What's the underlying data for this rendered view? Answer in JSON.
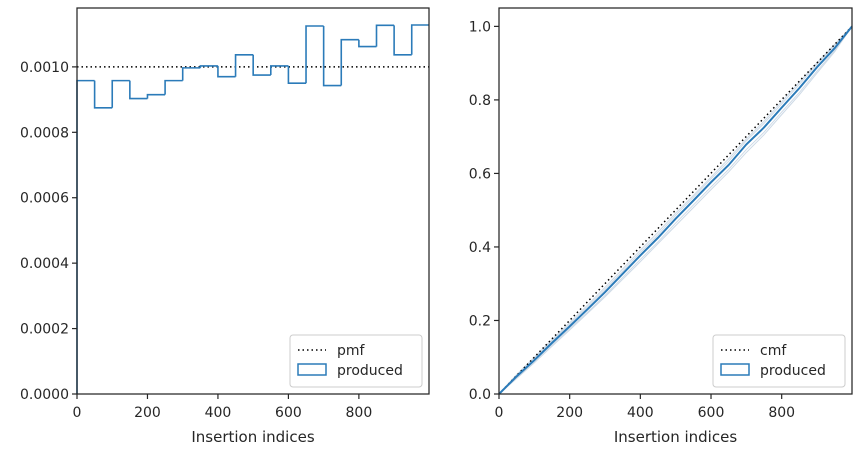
{
  "chart_data": [
    {
      "type": "step",
      "xlabel": "Insertion indices",
      "ylabel": "",
      "xlim": [
        0,
        999
      ],
      "ylim": [
        0,
        0.00118
      ],
      "xticks": [
        0,
        200,
        400,
        600,
        800
      ],
      "yticks": [
        0.0,
        0.0002,
        0.0004,
        0.0006,
        0.0008,
        0.001
      ],
      "ytick_labels": [
        "0.0000",
        "0.0002",
        "0.0004",
        "0.0006",
        "0.0008",
        "0.0010"
      ],
      "reference_line": {
        "name": "pmf",
        "style": "dotted",
        "color": "#000000",
        "value": 0.001
      },
      "histogram": {
        "name": "produced",
        "color": "#2b7bb9",
        "bin_edges": [
          0,
          50,
          100,
          150,
          200,
          250,
          300,
          350,
          400,
          450,
          500,
          550,
          600,
          650,
          700,
          750,
          800,
          850,
          900,
          950,
          999
        ],
        "values": [
          0.000958,
          0.000875,
          0.000958,
          0.000903,
          0.000915,
          0.000958,
          0.000997,
          0.001003,
          0.00097,
          0.001037,
          0.000975,
          0.001003,
          0.00095,
          0.001125,
          0.000943,
          0.001083,
          0.001062,
          0.001127,
          0.001037,
          0.001128
        ]
      },
      "legend": {
        "location": "lower-right",
        "entries": [
          "pmf",
          "produced"
        ]
      }
    },
    {
      "type": "line",
      "xlabel": "Insertion indices",
      "ylabel": "",
      "xlim": [
        0,
        999
      ],
      "ylim": [
        0,
        1.05
      ],
      "xticks": [
        0,
        200,
        400,
        600,
        800
      ],
      "yticks": [
        0.0,
        0.2,
        0.4,
        0.6,
        0.8,
        1.0
      ],
      "ytick_labels": [
        "0.0",
        "0.2",
        "0.4",
        "0.6",
        "0.8",
        "1.0"
      ],
      "reference_line": {
        "name": "cmf",
        "style": "dotted",
        "color": "#000000",
        "x": [
          0,
          999
        ],
        "y": [
          0,
          1.0
        ]
      },
      "series": [
        {
          "name": "produced",
          "color": "#2b7bb9",
          "x": [
            0,
            50,
            100,
            150,
            200,
            250,
            300,
            350,
            400,
            450,
            500,
            550,
            600,
            650,
            700,
            750,
            800,
            850,
            900,
            950,
            999
          ],
          "y": [
            0,
            0.048,
            0.092,
            0.139,
            0.184,
            0.23,
            0.277,
            0.327,
            0.377,
            0.425,
            0.477,
            0.526,
            0.576,
            0.623,
            0.679,
            0.725,
            0.779,
            0.832,
            0.889,
            0.941,
            1.0
          ]
        }
      ],
      "background_traces": {
        "color": "#c9d6e3",
        "lines": [
          [
            0,
            0.044,
            0.089,
            0.134,
            0.178,
            0.222,
            0.268,
            0.317,
            0.366,
            0.414,
            0.465,
            0.514,
            0.563,
            0.611,
            0.665,
            0.712,
            0.767,
            0.82,
            0.878,
            0.935,
            1.0
          ],
          [
            0,
            0.051,
            0.097,
            0.145,
            0.19,
            0.236,
            0.284,
            0.334,
            0.385,
            0.433,
            0.486,
            0.535,
            0.585,
            0.633,
            0.689,
            0.736,
            0.789,
            0.842,
            0.897,
            0.948,
            1.0
          ],
          [
            0,
            0.042,
            0.085,
            0.13,
            0.174,
            0.219,
            0.264,
            0.312,
            0.36,
            0.409,
            0.458,
            0.507,
            0.556,
            0.604,
            0.657,
            0.705,
            0.76,
            0.814,
            0.873,
            0.931,
            1.0
          ],
          [
            0,
            0.053,
            0.1,
            0.148,
            0.194,
            0.241,
            0.29,
            0.34,
            0.391,
            0.44,
            0.492,
            0.54,
            0.59,
            0.64,
            0.694,
            0.742,
            0.795,
            0.848,
            0.901,
            0.951,
            1.0
          ]
        ]
      },
      "legend": {
        "location": "lower-right",
        "entries": [
          "cmf",
          "produced"
        ]
      }
    }
  ]
}
